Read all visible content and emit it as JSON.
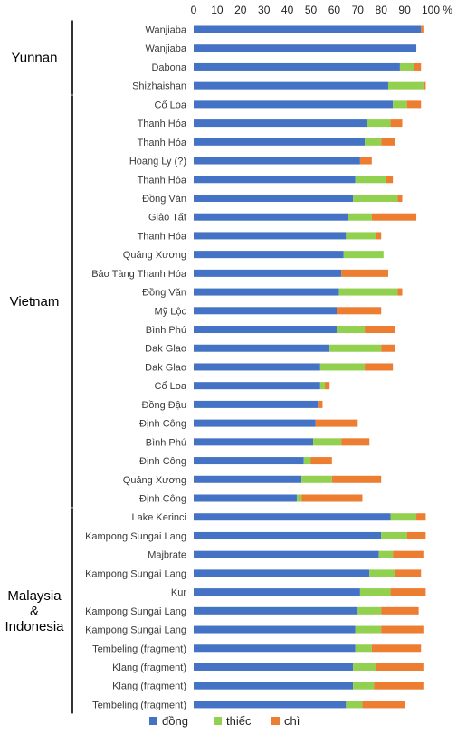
{
  "chart_data": {
    "type": "bar",
    "orientation": "horizontal",
    "stacked": true,
    "xlim": [
      0,
      100
    ],
    "x_ticks": [
      "0",
      "10",
      "20",
      "30",
      "40",
      "50",
      "60",
      "70",
      "80",
      "90",
      "100 %"
    ],
    "categories": [
      "Wanjiaba",
      "Wanjiaba",
      "Dabona",
      "Shizhaishan",
      "Cổ Loa",
      "Thanh Hóa",
      "Thanh Hóa",
      "Hoang Ly (?)",
      "Thanh Hóa",
      "Đồng Văn",
      "Giảo Tất",
      "Thanh Hóa",
      "Quảng Xương",
      "Bảo Tàng Thanh Hóa",
      "Đồng Văn",
      "Mỹ Lộc",
      "Bình Phú",
      "Dak Glao",
      "Dak Glao",
      "Cổ Loa",
      "Đồng Đậu",
      "Định Công",
      "Bình Phú",
      "Định Công",
      "Quảng Xương",
      "Định Công",
      "Lake Kerinci",
      "Kampong Sungai Lang",
      "Majbrate",
      "Kampong Sungai Lang",
      "Kur",
      "Kampong Sungai Lang",
      "Kampong Sungai Lang",
      "Tembeling (fragment)",
      "Klang (fragment)",
      "Klang (fragment)",
      "Tembeling (fragment)"
    ],
    "series": [
      {
        "name": "đồng",
        "color": "#4472c4",
        "values": [
          97,
          95,
          88,
          83,
          85,
          74,
          73,
          71,
          69,
          68,
          66,
          65,
          64,
          63,
          62,
          61,
          61,
          58,
          54,
          54,
          53,
          52,
          51,
          47,
          46,
          44,
          84,
          80,
          79,
          75,
          71,
          70,
          69,
          69,
          68,
          68,
          65
        ]
      },
      {
        "name": "thiếc",
        "color": "#92d050",
        "values": [
          0,
          0,
          6,
          15,
          6,
          10,
          7,
          0,
          13,
          19,
          10,
          13,
          17,
          0,
          25,
          0,
          12,
          22,
          19,
          2,
          0,
          0,
          12,
          3,
          13,
          2,
          11,
          11,
          6,
          11,
          13,
          10,
          11,
          7,
          10,
          9,
          7
        ]
      },
      {
        "name": "chì",
        "color": "#ed7d31",
        "values": [
          1,
          0,
          3,
          1,
          6,
          5,
          6,
          5,
          3,
          2,
          19,
          2,
          0,
          20,
          2,
          19,
          13,
          6,
          12,
          2,
          2,
          18,
          12,
          9,
          21,
          26,
          4,
          8,
          13,
          11,
          15,
          16,
          18,
          21,
          20,
          21,
          18
        ]
      }
    ],
    "groups": [
      {
        "label": "Yunnan",
        "start": 0,
        "end": 3
      },
      {
        "label": "Vietnam",
        "start": 4,
        "end": 25
      },
      {
        "label": "Malaysia\n&\nIndonesia",
        "start": 26,
        "end": 36
      }
    ],
    "legend_position": "bottom",
    "grid": false
  }
}
